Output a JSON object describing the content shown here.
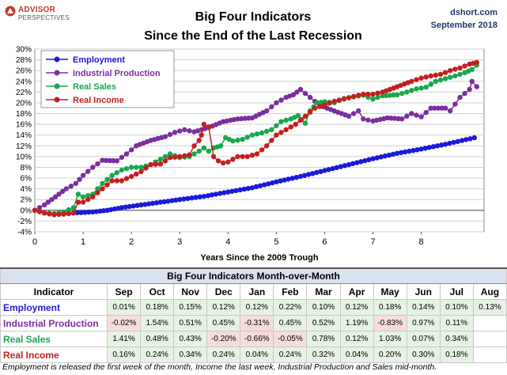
{
  "branding": {
    "logo_line1": "ADVISOR",
    "logo_line2": "PERSPECTIVES",
    "source": "dshort.com",
    "date": "September 2018"
  },
  "chart_data": {
    "type": "line",
    "title": "Big Four Indicators",
    "subtitle": "Since the End of the Last Recession",
    "xlabel": "Years Since the 2009 Trough",
    "ylabel": "",
    "xlim": [
      0,
      9.3
    ],
    "ylim": [
      -4,
      30
    ],
    "xticks": [
      0,
      1,
      2,
      3,
      4,
      5,
      6,
      7,
      8
    ],
    "yticks": [
      -4,
      -2,
      0,
      2,
      4,
      6,
      8,
      10,
      12,
      14,
      16,
      18,
      20,
      22,
      24,
      26,
      28,
      30
    ],
    "ytick_labels": [
      "-4%",
      "-2%",
      "0%",
      "2%",
      "4%",
      "6%",
      "8%",
      "10%",
      "12%",
      "14%",
      "16%",
      "18%",
      "20%",
      "22%",
      "24%",
      "26%",
      "28%",
      "30%"
    ],
    "grid": true,
    "legend_position": "top-left",
    "series": [
      {
        "name": "Employment",
        "color": "#1a1adc",
        "points": [
          [
            0,
            0
          ],
          [
            0.2,
            -0.5
          ],
          [
            0.4,
            -0.8
          ],
          [
            0.6,
            -0.7
          ],
          [
            0.8,
            -0.5
          ],
          [
            1.2,
            -0.3
          ],
          [
            1.5,
            0
          ],
          [
            1.8,
            0.5
          ],
          [
            2.2,
            1
          ],
          [
            2.6,
            1.5
          ],
          [
            3,
            2
          ],
          [
            3.5,
            2.6
          ],
          [
            4,
            3.4
          ],
          [
            4.5,
            4.2
          ],
          [
            5,
            5.3
          ],
          [
            5.5,
            6.3
          ],
          [
            6,
            7.4
          ],
          [
            6.5,
            8.5
          ],
          [
            7,
            9.6
          ],
          [
            7.5,
            10.6
          ],
          [
            8,
            11.4
          ],
          [
            8.5,
            12.3
          ],
          [
            9.1,
            13.5
          ]
        ]
      },
      {
        "name": "Industrial Production",
        "color": "#7b2ea0",
        "points": [
          [
            0,
            0
          ],
          [
            0.2,
            1
          ],
          [
            0.35,
            2
          ],
          [
            0.5,
            3
          ],
          [
            0.65,
            4
          ],
          [
            0.85,
            5
          ],
          [
            1,
            6.5
          ],
          [
            1.2,
            8
          ],
          [
            1.4,
            9.3
          ],
          [
            1.7,
            9.2
          ],
          [
            1.9,
            10.5
          ],
          [
            2.1,
            12
          ],
          [
            2.4,
            13
          ],
          [
            2.7,
            13.7
          ],
          [
            2.9,
            14.5
          ],
          [
            3.1,
            15
          ],
          [
            3.3,
            14.6
          ],
          [
            3.6,
            15.4
          ],
          [
            3.9,
            16.5
          ],
          [
            4.2,
            17
          ],
          [
            4.5,
            17.2
          ],
          [
            4.8,
            18.5
          ],
          [
            5,
            20
          ],
          [
            5.2,
            21
          ],
          [
            5.35,
            21.5
          ],
          [
            5.5,
            22.5
          ],
          [
            5.7,
            21
          ],
          [
            5.9,
            19.5
          ],
          [
            6.2,
            18.5
          ],
          [
            6.5,
            17.5
          ],
          [
            6.7,
            18.5
          ],
          [
            6.8,
            17
          ],
          [
            7,
            16.6
          ],
          [
            7.3,
            17.2
          ],
          [
            7.6,
            17
          ],
          [
            7.8,
            18
          ],
          [
            8,
            17.4
          ],
          [
            8.2,
            19
          ],
          [
            8.5,
            19
          ],
          [
            8.6,
            18.5
          ],
          [
            8.8,
            21
          ],
          [
            9.0,
            22.5
          ],
          [
            9.05,
            24
          ],
          [
            9.15,
            23
          ]
        ]
      },
      {
        "name": "Real Sales",
        "color": "#17a84a",
        "points": [
          [
            0,
            0
          ],
          [
            0.2,
            -0.5
          ],
          [
            0.4,
            -0.6
          ],
          [
            0.6,
            -0.3
          ],
          [
            0.8,
            0.5
          ],
          [
            0.9,
            3
          ],
          [
            1,
            2.5
          ],
          [
            1.2,
            3
          ],
          [
            1.4,
            5
          ],
          [
            1.6,
            6.5
          ],
          [
            1.8,
            7.5
          ],
          [
            2,
            8
          ],
          [
            2.2,
            8
          ],
          [
            2.4,
            8.5
          ],
          [
            2.6,
            9.5
          ],
          [
            2.8,
            10.5
          ],
          [
            3,
            9.8
          ],
          [
            3.2,
            10
          ],
          [
            3.4,
            11
          ],
          [
            3.5,
            11.6
          ],
          [
            3.6,
            11
          ],
          [
            3.7,
            11.6
          ],
          [
            3.85,
            12
          ],
          [
            3.95,
            13.5
          ],
          [
            4.1,
            12.9
          ],
          [
            4.3,
            13.2
          ],
          [
            4.5,
            14
          ],
          [
            4.7,
            14.4
          ],
          [
            4.9,
            15
          ],
          [
            5.1,
            16.5
          ],
          [
            5.3,
            17
          ],
          [
            5.45,
            17.6
          ],
          [
            5.6,
            16.2
          ],
          [
            5.7,
            18.5
          ],
          [
            5.85,
            20
          ],
          [
            6,
            20.2
          ],
          [
            6.2,
            20
          ],
          [
            6.4,
            20.8
          ],
          [
            6.6,
            21.1
          ],
          [
            6.8,
            21.4
          ],
          [
            7,
            20.7
          ],
          [
            7.2,
            21.3
          ],
          [
            7.5,
            21.5
          ],
          [
            7.7,
            22
          ],
          [
            7.9,
            22.6
          ],
          [
            8.1,
            22.9
          ],
          [
            8.3,
            24
          ],
          [
            8.5,
            24.5
          ],
          [
            8.7,
            25
          ],
          [
            8.9,
            25.6
          ],
          [
            9.05,
            26.2
          ],
          [
            9.15,
            27
          ]
        ]
      },
      {
        "name": "Real Income",
        "color": "#c41f1f",
        "points": [
          [
            0,
            0
          ],
          [
            0.2,
            -0.5
          ],
          [
            0.4,
            -0.8
          ],
          [
            0.6,
            -0.7
          ],
          [
            0.8,
            -0.5
          ],
          [
            0.9,
            1.5
          ],
          [
            1,
            1.5
          ],
          [
            1.2,
            2.5
          ],
          [
            1.4,
            4
          ],
          [
            1.6,
            5.5
          ],
          [
            1.8,
            5.5
          ],
          [
            2,
            6.3
          ],
          [
            2.2,
            7.2
          ],
          [
            2.4,
            8.5
          ],
          [
            2.6,
            8.6
          ],
          [
            2.8,
            9.8
          ],
          [
            3,
            10
          ],
          [
            3.2,
            10.3
          ],
          [
            3.3,
            12
          ],
          [
            3.4,
            13
          ],
          [
            3.45,
            14
          ],
          [
            3.5,
            16
          ],
          [
            3.6,
            15.5
          ],
          [
            3.7,
            10
          ],
          [
            3.8,
            9.2
          ],
          [
            3.9,
            8.8
          ],
          [
            4,
            9
          ],
          [
            4.2,
            10
          ],
          [
            4.4,
            10
          ],
          [
            4.6,
            10.5
          ],
          [
            4.8,
            12
          ],
          [
            5,
            14
          ],
          [
            5.2,
            15
          ],
          [
            5.4,
            16
          ],
          [
            5.6,
            17.5
          ],
          [
            5.8,
            19
          ],
          [
            6,
            19.6
          ],
          [
            6.2,
            20.3
          ],
          [
            6.4,
            20.7
          ],
          [
            6.6,
            21.2
          ],
          [
            6.8,
            21.6
          ],
          [
            7,
            21.6
          ],
          [
            7.2,
            22
          ],
          [
            7.5,
            23
          ],
          [
            7.8,
            24
          ],
          [
            8,
            24.6
          ],
          [
            8.2,
            25
          ],
          [
            8.4,
            25.3
          ],
          [
            8.6,
            26
          ],
          [
            8.8,
            26.5
          ],
          [
            9,
            27.2
          ],
          [
            9.15,
            27.5
          ]
        ]
      }
    ]
  },
  "table": {
    "caption": "Big Four Indicators Month-over-Month",
    "header": "Indicator",
    "months": [
      "Sep",
      "Oct",
      "Nov",
      "Dec",
      "Jan",
      "Feb",
      "Mar",
      "Apr",
      "May",
      "Jun",
      "Jul",
      "Aug"
    ],
    "rows": [
      {
        "name": "Employment",
        "color": "#1a1adc",
        "values": [
          "0.01%",
          "0.18%",
          "0.15%",
          "0.12%",
          "0.12%",
          "0.22%",
          "0.10%",
          "0.12%",
          "0.18%",
          "0.14%",
          "0.10%",
          "0.13%"
        ]
      },
      {
        "name": "Industrial Production",
        "color": "#7b2ea0",
        "values": [
          "-0.02%",
          "1.54%",
          "0.51%",
          "0.45%",
          "-0.31%",
          "0.45%",
          "0.52%",
          "1.19%",
          "-0.83%",
          "0.97%",
          "0.11%",
          ""
        ]
      },
      {
        "name": "Real Sales",
        "color": "#17a84a",
        "values": [
          "1.41%",
          "0.48%",
          "0.43%",
          "-0.20%",
          "-0.66%",
          "-0.05%",
          "0.78%",
          "0.12%",
          "1.03%",
          "0.07%",
          "0.34%",
          ""
        ]
      },
      {
        "name": "Real Income",
        "color": "#c41f1f",
        "values": [
          "0.16%",
          "0.24%",
          "0.34%",
          "0.24%",
          "0.04%",
          "0.24%",
          "0.32%",
          "0.04%",
          "0.20%",
          "0.30%",
          "0.18%",
          ""
        ]
      }
    ]
  },
  "footnote": "Employment is released the first week of the month, Income the last week, Industrial Production and Sales mid-month."
}
